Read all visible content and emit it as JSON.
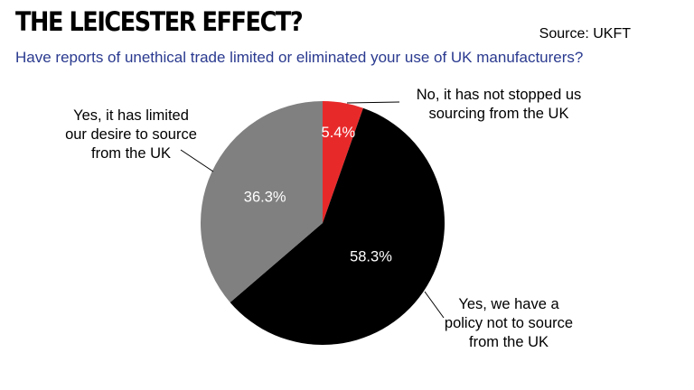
{
  "header": {
    "title": "THE LEICESTER EFFECT?",
    "source": "Source: UKFT",
    "subtitle": "Have reports of unethical trade limited or eliminated your use of UK manufacturers?"
  },
  "chart_data": {
    "type": "pie",
    "title": "THE LEICESTER EFFECT?",
    "subtitle": "Have reports of unethical trade limited or eliminated your use of UK manufacturers?",
    "slices": [
      {
        "name": "No, it has not stopped us sourcing from the UK",
        "label_lines": [
          "No, it has not stopped us",
          "sourcing from the UK"
        ],
        "value": 5.4,
        "value_label": "5.4%",
        "color": "#e8292a",
        "value_text_color": "#ffffff"
      },
      {
        "name": "Yes, we have a policy not to source from the UK",
        "label_lines": [
          "Yes, we have a",
          "policy not to source",
          "from the UK"
        ],
        "value": 58.3,
        "value_label": "58.3%",
        "color": "#000000",
        "value_text_color": "#ffffff"
      },
      {
        "name": "Yes, it has limited our desire to source from the UK",
        "label_lines": [
          "Yes, it has limited",
          "our desire to source",
          "from the UK"
        ],
        "value": 36.3,
        "value_label": "36.3%",
        "color": "#808080",
        "value_text_color": "#ffffff"
      }
    ],
    "start_angle": "12 o'clock",
    "direction": "clockwise",
    "legend": "none"
  }
}
